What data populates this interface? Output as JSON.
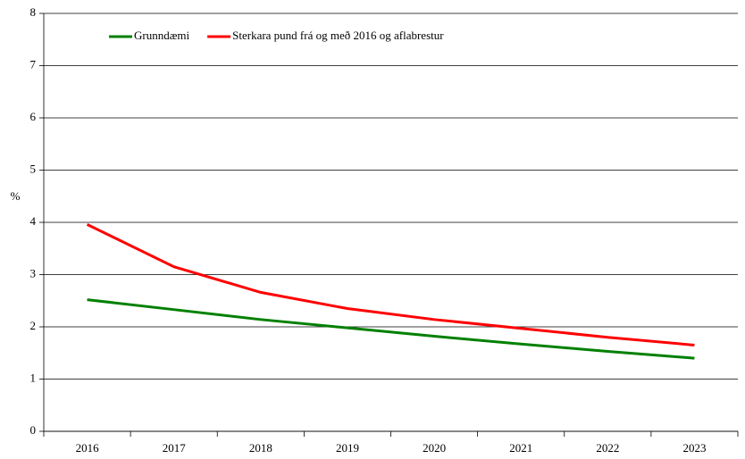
{
  "chart_data": {
    "type": "line",
    "y_label": "%",
    "categories": [
      "2016",
      "2017",
      "2018",
      "2019",
      "2020",
      "2021",
      "2022",
      "2023"
    ],
    "series": [
      {
        "name": "Grunndæmi",
        "color": "#008000",
        "values": [
          2.52,
          2.33,
          2.14,
          1.98,
          1.82,
          1.67,
          1.53,
          1.4
        ]
      },
      {
        "name": "Sterkara pund frá og með 2016 og aflabrestur",
        "color": "#ff0000",
        "values": [
          3.96,
          3.15,
          2.66,
          2.35,
          2.14,
          1.97,
          1.8,
          1.65
        ]
      }
    ],
    "ylim": [
      0,
      8
    ],
    "yticks": [
      0,
      1,
      2,
      3,
      4,
      5,
      6,
      7,
      8
    ],
    "grid": true
  }
}
